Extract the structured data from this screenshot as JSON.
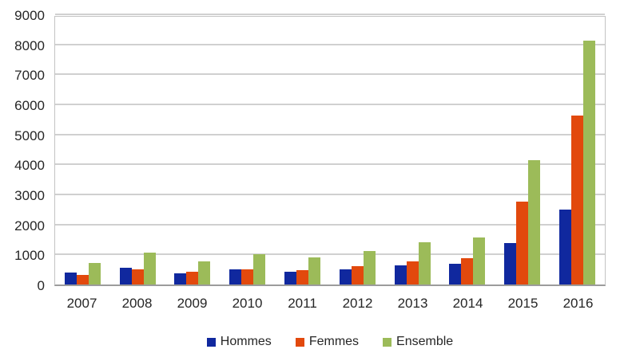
{
  "chart_data": {
    "type": "bar",
    "title": "",
    "xlabel": "",
    "ylabel": "",
    "categories": [
      "2007",
      "2008",
      "2009",
      "2010",
      "2011",
      "2012",
      "2013",
      "2014",
      "2015",
      "2016"
    ],
    "series": [
      {
        "name": "Hommes",
        "color": "#10289E",
        "values": [
          390,
          560,
          370,
          500,
          420,
          520,
          640,
          700,
          1390,
          2530
        ]
      },
      {
        "name": "Femmes",
        "color": "#E2490D",
        "values": [
          330,
          500,
          420,
          520,
          480,
          610,
          770,
          880,
          2780,
          5670
        ]
      },
      {
        "name": "Ensemble",
        "color": "#9CBB59",
        "values": [
          720,
          1060,
          790,
          1020,
          900,
          1130,
          1410,
          1580,
          4170,
          8200
        ]
      }
    ],
    "ylim": [
      0,
      9000
    ],
    "ytick_step": 1000,
    "yticks": [
      0,
      1000,
      2000,
      3000,
      4000,
      5000,
      6000,
      7000,
      8000,
      9000
    ],
    "ytick_labels": [
      "0",
      "1000",
      "2000",
      "3000",
      "4000",
      "5000",
      "6000",
      "7000",
      "8000",
      "9000"
    ],
    "grid": true,
    "legend_position": "bottom"
  },
  "colors": {
    "background": "#FFFFFF",
    "gridline": "#D0D0D0",
    "plot_border": "#C4C4C4",
    "axis_line": "#9C9C9C",
    "text": "#262626"
  }
}
